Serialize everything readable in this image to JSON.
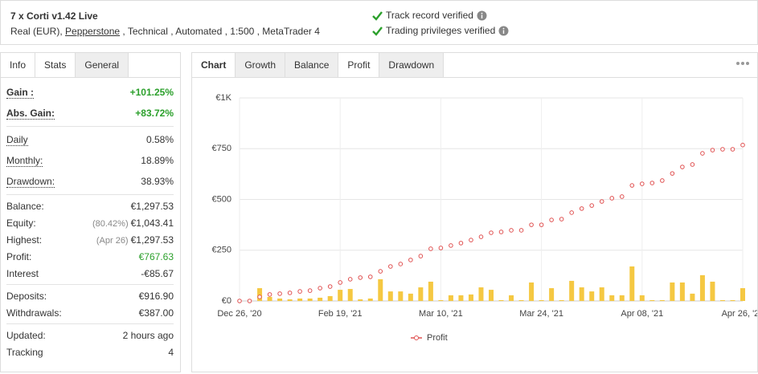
{
  "header": {
    "title": "7 x Corti v1.42 Live",
    "account": {
      "before": "Real (EUR), ",
      "broker": "Pepperstone",
      "after": " , Technical , Automated , 1:500 , MetaTrader 4"
    },
    "verified": [
      "Track record verified",
      "Trading privileges verified"
    ]
  },
  "sidebar": {
    "tabs": [
      "Info",
      "Stats",
      "General"
    ],
    "groups": [
      [
        {
          "label": "Gain :",
          "value": "+101.25%",
          "color": "#2ca02c"
        },
        {
          "label": "Abs. Gain:",
          "value": "+83.72%",
          "color": "#2ca02c"
        }
      ],
      [
        {
          "label": "Daily",
          "value": "0.58%"
        },
        {
          "label": "Monthly:",
          "value": "18.89%"
        },
        {
          "label": "Drawdown:",
          "value": "38.93%"
        }
      ],
      [
        {
          "label": "Balance:",
          "value": "€1,297.53"
        },
        {
          "label": "Equity:",
          "note": "(80.42%)",
          "value": "€1,043.41"
        },
        {
          "label": "Highest:",
          "note": "(Apr 26)",
          "value": "€1,297.53"
        },
        {
          "label": "Profit:",
          "value": "€767.63",
          "color": "#2ca02c"
        },
        {
          "label": "Interest",
          "value": "-€85.67"
        }
      ],
      [
        {
          "label": "Deposits:",
          "value": "€916.90"
        },
        {
          "label": "Withdrawals:",
          "value": "€387.00"
        }
      ],
      [
        {
          "label": "Updated:",
          "value": "2 hours ago"
        },
        {
          "label": "Tracking",
          "value": "4"
        }
      ]
    ]
  },
  "chart_tabs": [
    "Chart",
    "Growth",
    "Balance",
    "Profit",
    "Drawdown"
  ],
  "chart_data": {
    "type": "combo",
    "categories": [
      "Dec 26, '20",
      null,
      null,
      null,
      null,
      null,
      null,
      null,
      null,
      null,
      "Feb 19, '21",
      null,
      null,
      null,
      null,
      null,
      null,
      null,
      null,
      null,
      "Mar 10, '21",
      null,
      null,
      null,
      null,
      null,
      null,
      null,
      null,
      null,
      "Mar 24, '21",
      null,
      null,
      null,
      null,
      null,
      null,
      null,
      null,
      null,
      "Apr 08, '21",
      null,
      null,
      null,
      null,
      null,
      null,
      null,
      null,
      null,
      "Apr 26, '21"
    ],
    "series": [
      {
        "name": "Profit",
        "type": "line",
        "color": "#e05252",
        "values": [
          0,
          0,
          20,
          32,
          36,
          40,
          47,
          51,
          63,
          71,
          91,
          107,
          115,
          119,
          146,
          170,
          182,
          202,
          221,
          257,
          261,
          273,
          285,
          300,
          316,
          336,
          340,
          348,
          348,
          375,
          375,
          399,
          403,
          435,
          455,
          470,
          490,
          506,
          514,
          569,
          577,
          581,
          593,
          628,
          660,
          672,
          727,
          743,
          747,
          747,
          768
        ]
      },
      {
        "type": "bar",
        "color": "#f5c842",
        "values": [
          0,
          0,
          63,
          20,
          12,
          8,
          12,
          12,
          16,
          24,
          55,
          59,
          8,
          12,
          107,
          47,
          47,
          36,
          67,
          95,
          4,
          28,
          28,
          32,
          67,
          55,
          4,
          28,
          4,
          91,
          4,
          63,
          4,
          99,
          67,
          47,
          67,
          28,
          28,
          170,
          28,
          4,
          4,
          91,
          91,
          36,
          127,
          95,
          4,
          4,
          63
        ]
      }
    ],
    "ylim": [
      0,
      1000
    ],
    "yticks": [
      {
        "value": 0,
        "label": "€0"
      },
      {
        "value": 250,
        "label": "€250"
      },
      {
        "value": 500,
        "label": "€500"
      },
      {
        "value": 750,
        "label": "€750"
      },
      {
        "value": 1000,
        "label": "€1K"
      }
    ],
    "grid": true
  }
}
